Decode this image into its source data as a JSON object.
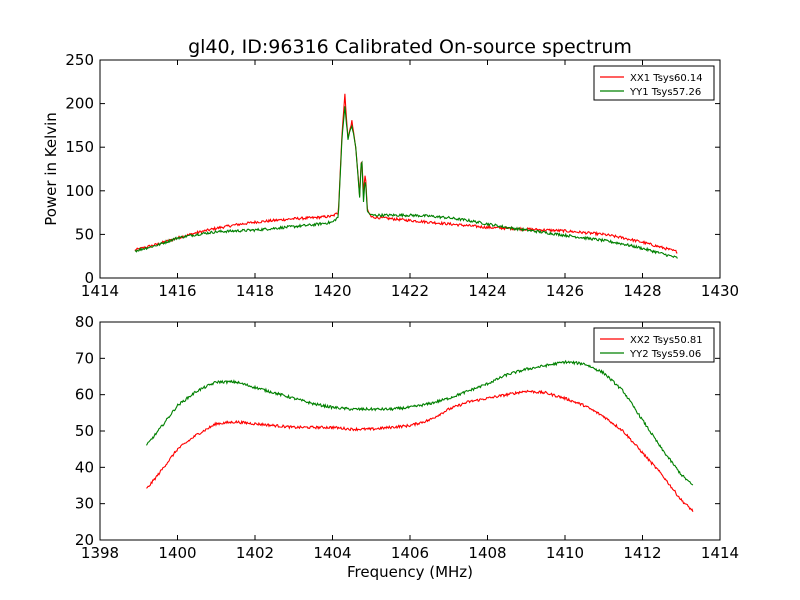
{
  "figure": {
    "title": "gl40, ID:96316 Calibrated On-source spectrum"
  },
  "chart_data": [
    {
      "type": "line",
      "title": "gl40, ID:96316 Calibrated On-source spectrum",
      "xlabel": "",
      "ylabel": "Power in Kelvin",
      "xlim": [
        1414,
        1430
      ],
      "ylim": [
        0,
        250
      ],
      "xticks": [
        1414,
        1416,
        1418,
        1420,
        1422,
        1424,
        1426,
        1428,
        1430
      ],
      "yticks": [
        0,
        50,
        100,
        150,
        200,
        250
      ],
      "grid": false,
      "legend_position": "top-right",
      "series": [
        {
          "name": "XX1 Tsys60.14",
          "color": "#ff0000",
          "x": [
            1414.9,
            1415.5,
            1416.0,
            1416.5,
            1417.0,
            1417.5,
            1418.0,
            1418.5,
            1419.0,
            1419.5,
            1420.0,
            1420.15,
            1420.25,
            1420.32,
            1420.4,
            1420.5,
            1420.6,
            1420.7,
            1420.75,
            1420.8,
            1420.85,
            1420.9,
            1421.0,
            1421.5,
            1422.0,
            1422.5,
            1423.0,
            1423.5,
            1424.0,
            1424.5,
            1425.0,
            1425.5,
            1426.0,
            1426.5,
            1427.0,
            1427.5,
            1428.0,
            1428.5,
            1428.9
          ],
          "values": [
            32,
            39,
            46,
            52,
            57,
            61,
            64,
            66,
            68,
            69,
            71,
            75,
            170,
            210,
            160,
            180,
            150,
            95,
            140,
            100,
            120,
            78,
            70,
            68,
            66,
            64,
            62,
            60,
            58,
            57,
            56,
            55,
            54,
            52,
            50,
            46,
            41,
            35,
            30
          ]
        },
        {
          "name": "YY1 Tsys57.26",
          "color": "#008000",
          "x": [
            1414.9,
            1415.5,
            1416.0,
            1416.5,
            1417.0,
            1417.5,
            1418.0,
            1418.5,
            1419.0,
            1419.5,
            1420.0,
            1420.15,
            1420.25,
            1420.32,
            1420.4,
            1420.5,
            1420.6,
            1420.7,
            1420.75,
            1420.8,
            1420.85,
            1420.9,
            1421.0,
            1421.5,
            1422.0,
            1422.5,
            1423.0,
            1423.5,
            1424.0,
            1424.5,
            1425.0,
            1425.5,
            1426.0,
            1426.5,
            1427.0,
            1427.5,
            1428.0,
            1428.5,
            1428.9
          ],
          "values": [
            31,
            38,
            46,
            50,
            53,
            54,
            55,
            57,
            59,
            61,
            64,
            70,
            165,
            196,
            160,
            175,
            150,
            92,
            142,
            88,
            115,
            76,
            72,
            72,
            72,
            71,
            69,
            66,
            62,
            58,
            55,
            52,
            49,
            46,
            43,
            39,
            34,
            28,
            23
          ]
        }
      ]
    },
    {
      "type": "line",
      "title": "",
      "xlabel": "Frequency (MHz)",
      "ylabel": "",
      "xlim": [
        1398,
        1414
      ],
      "ylim": [
        20,
        80
      ],
      "xticks": [
        1398,
        1400,
        1402,
        1404,
        1406,
        1408,
        1410,
        1412,
        1414
      ],
      "yticks": [
        20,
        30,
        40,
        50,
        60,
        70,
        80
      ],
      "grid": false,
      "legend_position": "top-right",
      "series": [
        {
          "name": "XX2 Tsys50.81",
          "color": "#ff0000",
          "x": [
            1399.2,
            1399.5,
            1400.0,
            1400.5,
            1401.0,
            1401.5,
            1402.0,
            1402.5,
            1403.0,
            1403.5,
            1404.0,
            1404.5,
            1405.0,
            1405.5,
            1406.0,
            1406.5,
            1407.0,
            1407.5,
            1408.0,
            1408.5,
            1409.0,
            1409.5,
            1410.0,
            1410.5,
            1411.0,
            1411.5,
            1412.0,
            1412.5,
            1413.0,
            1413.3
          ],
          "values": [
            34,
            38,
            45,
            49,
            52,
            52.5,
            52,
            51.5,
            51,
            51,
            51,
            50.5,
            50.5,
            51,
            51.5,
            53,
            56,
            58,
            59,
            60,
            61,
            60.5,
            59,
            57,
            54,
            50,
            44,
            38,
            31,
            28
          ]
        },
        {
          "name": "YY2 Tsys59.06",
          "color": "#008000",
          "x": [
            1399.2,
            1399.5,
            1400.0,
            1400.5,
            1401.0,
            1401.5,
            1402.0,
            1402.5,
            1403.0,
            1403.5,
            1404.0,
            1404.5,
            1405.0,
            1405.5,
            1406.0,
            1406.5,
            1407.0,
            1407.5,
            1408.0,
            1408.5,
            1409.0,
            1409.5,
            1410.0,
            1410.5,
            1411.0,
            1411.5,
            1412.0,
            1412.5,
            1413.0,
            1413.3
          ],
          "values": [
            46,
            50,
            57,
            61,
            63.5,
            63.5,
            62,
            60.5,
            59,
            57.5,
            56.5,
            56,
            56,
            56,
            56.5,
            57.5,
            59,
            61,
            63,
            65.5,
            67,
            68,
            69,
            68.5,
            66,
            61,
            53,
            45,
            38,
            35
          ]
        }
      ]
    }
  ]
}
